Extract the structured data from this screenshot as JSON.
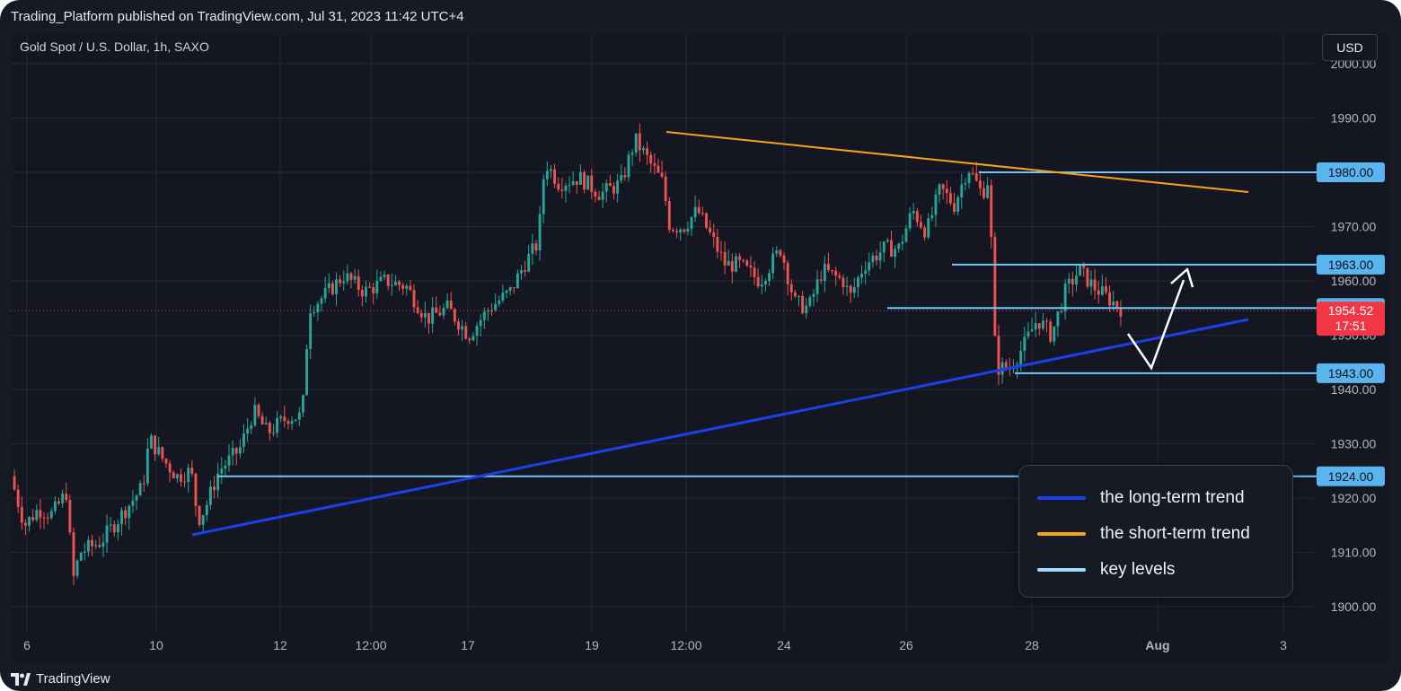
{
  "header": {
    "text": "Trading_Platform published on TradingView.com, Jul 31, 2023 11:42 UTC+4"
  },
  "chart_header": {
    "symbol": "Gold Spot / U.S. Dollar, 1h, SAXO",
    "currency": "USD"
  },
  "footer": {
    "brand": "TradingView"
  },
  "colors": {
    "background": "#161a25",
    "up_candle": "#26a69a",
    "down_candle": "#ef5350",
    "long_trend": "#1d3fe8",
    "short_trend": "#f7a21b",
    "key_level": "#6ec6f5",
    "price_tag": "#f23645"
  },
  "legend": {
    "items": [
      {
        "label": "the long-term trend",
        "color": "#1d3fe8"
      },
      {
        "label": "the short-term trend",
        "color": "#f7a21b"
      },
      {
        "label": "key levels",
        "color": "#9fdcfb"
      }
    ]
  },
  "chart_data": {
    "type": "candlestick",
    "ylim": [
      1898,
      2002
    ],
    "y_ticks": [
      "1900.00",
      "1910.00",
      "1920.00",
      "1930.00",
      "1940.00",
      "1950.00",
      "1960.00",
      "1970.00",
      "1980.00",
      "1990.00",
      "2000.00"
    ],
    "x_ticks": [
      "6",
      "10",
      "12",
      "12:00",
      "17",
      "19",
      "12:00",
      "24",
      "26",
      "28",
      "Aug",
      "3"
    ],
    "current_price": {
      "value": "1954.52",
      "countdown": "17:51"
    },
    "key_levels": [
      {
        "value": 1980.0,
        "label": "1980.00"
      },
      {
        "value": 1963.0,
        "label": "1963.00"
      },
      {
        "value": 1955.0,
        "label": "1955.00"
      },
      {
        "value": 1943.0,
        "label": "1943.00"
      },
      {
        "value": 1924.0,
        "label": "1924.00"
      }
    ],
    "price_path": [
      {
        "x": 0,
        "y": 1924
      },
      {
        "x": 2,
        "y": 1915
      },
      {
        "x": 4,
        "y": 1918
      },
      {
        "x": 6,
        "y": 1917
      },
      {
        "x": 8,
        "y": 1921
      },
      {
        "x": 9,
        "y": 1905
      },
      {
        "x": 10,
        "y": 1910
      },
      {
        "x": 13,
        "y": 1912
      },
      {
        "x": 16,
        "y": 1917
      },
      {
        "x": 19,
        "y": 1922
      },
      {
        "x": 20,
        "y": 1931
      },
      {
        "x": 22,
        "y": 1927
      },
      {
        "x": 24,
        "y": 1924
      },
      {
        "x": 26,
        "y": 1925
      },
      {
        "x": 27,
        "y": 1916
      },
      {
        "x": 28,
        "y": 1918
      },
      {
        "x": 30,
        "y": 1925
      },
      {
        "x": 33,
        "y": 1929
      },
      {
        "x": 35,
        "y": 1936
      },
      {
        "x": 37,
        "y": 1932
      },
      {
        "x": 40,
        "y": 1935
      },
      {
        "x": 42,
        "y": 1935
      },
      {
        "x": 43,
        "y": 1955
      },
      {
        "x": 45,
        "y": 1957
      },
      {
        "x": 48,
        "y": 1961
      },
      {
        "x": 51,
        "y": 1958
      },
      {
        "x": 54,
        "y": 1960
      },
      {
        "x": 57,
        "y": 1959
      },
      {
        "x": 60,
        "y": 1953
      },
      {
        "x": 63,
        "y": 1955
      },
      {
        "x": 66,
        "y": 1950
      },
      {
        "x": 69,
        "y": 1955
      },
      {
        "x": 72,
        "y": 1958
      },
      {
        "x": 74,
        "y": 1963
      },
      {
        "x": 76,
        "y": 1967
      },
      {
        "x": 77,
        "y": 1982
      },
      {
        "x": 79,
        "y": 1978
      },
      {
        "x": 82,
        "y": 1979
      },
      {
        "x": 85,
        "y": 1976
      },
      {
        "x": 88,
        "y": 1978
      },
      {
        "x": 90,
        "y": 1986
      },
      {
        "x": 92,
        "y": 1982
      },
      {
        "x": 94,
        "y": 1978
      },
      {
        "x": 95,
        "y": 1970
      },
      {
        "x": 97,
        "y": 1970
      },
      {
        "x": 99,
        "y": 1973
      },
      {
        "x": 101,
        "y": 1968
      },
      {
        "x": 103,
        "y": 1963
      },
      {
        "x": 105,
        "y": 1963
      },
      {
        "x": 108,
        "y": 1960
      },
      {
        "x": 111,
        "y": 1966
      },
      {
        "x": 113,
        "y": 1956
      },
      {
        "x": 115,
        "y": 1955
      },
      {
        "x": 117,
        "y": 1962
      },
      {
        "x": 120,
        "y": 1960
      },
      {
        "x": 121,
        "y": 1957
      },
      {
        "x": 123,
        "y": 1963
      },
      {
        "x": 126,
        "y": 1966
      },
      {
        "x": 128,
        "y": 1966
      },
      {
        "x": 130,
        "y": 1973
      },
      {
        "x": 132,
        "y": 1969
      },
      {
        "x": 134,
        "y": 1977
      },
      {
        "x": 136,
        "y": 1974
      },
      {
        "x": 138,
        "y": 1981
      },
      {
        "x": 140,
        "y": 1976
      },
      {
        "x": 141,
        "y": 1979
      },
      {
        "x": 142,
        "y": 1944
      },
      {
        "x": 144,
        "y": 1944
      },
      {
        "x": 146,
        "y": 1948
      },
      {
        "x": 148,
        "y": 1953
      },
      {
        "x": 150,
        "y": 1950
      },
      {
        "x": 152,
        "y": 1958
      },
      {
        "x": 154,
        "y": 1962
      },
      {
        "x": 156,
        "y": 1959
      },
      {
        "x": 158,
        "y": 1957
      },
      {
        "x": 160,
        "y": 1955
      }
    ]
  }
}
